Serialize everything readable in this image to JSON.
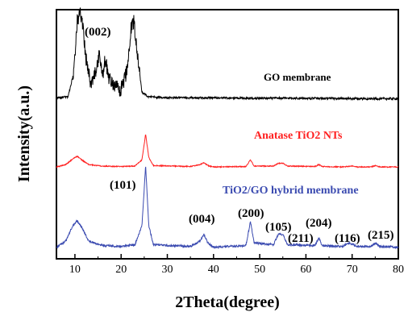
{
  "chart_data": {
    "type": "line",
    "xlabel": "2Theta(degree)",
    "ylabel": "Intensity(a.u.)",
    "xlim": [
      6,
      80
    ],
    "xticks": [
      10,
      20,
      30,
      40,
      50,
      60,
      70,
      80
    ],
    "yticks": [],
    "grid": false,
    "series": [
      {
        "name": "GO membrane",
        "color": "#000000",
        "baseline": 0.06,
        "noise": 0.012,
        "points": [
          [
            6,
            0.06
          ],
          [
            8.5,
            0.07
          ],
          [
            9.8,
            0.35
          ],
          [
            10.5,
            0.9
          ],
          [
            11.0,
            1.0
          ],
          [
            11.5,
            0.95
          ],
          [
            12.5,
            0.45
          ],
          [
            13.5,
            0.2
          ],
          [
            14.5,
            0.35
          ],
          [
            15.3,
            0.55
          ],
          [
            16.0,
            0.3
          ],
          [
            16.6,
            0.5
          ],
          [
            17.3,
            0.28
          ],
          [
            18.5,
            0.18
          ],
          [
            20.0,
            0.15
          ],
          [
            21.2,
            0.35
          ],
          [
            22.2,
            0.85
          ],
          [
            22.8,
            0.9
          ],
          [
            23.5,
            0.55
          ],
          [
            24.5,
            0.12
          ],
          [
            26,
            0.07
          ],
          [
            30,
            0.06
          ],
          [
            40,
            0.06
          ],
          [
            50,
            0.055
          ],
          [
            60,
            0.055
          ],
          [
            70,
            0.05
          ],
          [
            80,
            0.05
          ]
        ]
      },
      {
        "name": "Anatase TiO2 NTs",
        "color": "#ff2020",
        "baseline": 0.05,
        "noise": 0.01,
        "points": [
          [
            6,
            0.05
          ],
          [
            8,
            0.1
          ],
          [
            9.5,
            0.22
          ],
          [
            10.5,
            0.28
          ],
          [
            11.5,
            0.2
          ],
          [
            13,
            0.1
          ],
          [
            16,
            0.07
          ],
          [
            20,
            0.06
          ],
          [
            23,
            0.07
          ],
          [
            24.5,
            0.2
          ],
          [
            25.3,
            0.75
          ],
          [
            26,
            0.25
          ],
          [
            27,
            0.08
          ],
          [
            35,
            0.06
          ],
          [
            37,
            0.1
          ],
          [
            37.9,
            0.14
          ],
          [
            38.8,
            0.08
          ],
          [
            40,
            0.05
          ],
          [
            47,
            0.06
          ],
          [
            48,
            0.2
          ],
          [
            48.8,
            0.07
          ],
          [
            53,
            0.07
          ],
          [
            54,
            0.13
          ],
          [
            55,
            0.13
          ],
          [
            56,
            0.07
          ],
          [
            62,
            0.06
          ],
          [
            62.8,
            0.1
          ],
          [
            63.5,
            0.06
          ],
          [
            68,
            0.05
          ],
          [
            70,
            0.07
          ],
          [
            71,
            0.05
          ],
          [
            74,
            0.05
          ],
          [
            75,
            0.08
          ],
          [
            76,
            0.05
          ],
          [
            80,
            0.05
          ]
        ]
      },
      {
        "name": "TiO2/GO hybrid membrane",
        "color": "#3a4ab0",
        "baseline": 0.05,
        "noise": 0.012,
        "points": [
          [
            6,
            0.05
          ],
          [
            8,
            0.12
          ],
          [
            9.5,
            0.3
          ],
          [
            10.5,
            0.36
          ],
          [
            11.5,
            0.28
          ],
          [
            13,
            0.12
          ],
          [
            16,
            0.07
          ],
          [
            20,
            0.06
          ],
          [
            23,
            0.08
          ],
          [
            24.5,
            0.3
          ],
          [
            25.3,
            1.0
          ],
          [
            26,
            0.3
          ],
          [
            27,
            0.08
          ],
          [
            35,
            0.06
          ],
          [
            37,
            0.12
          ],
          [
            37.9,
            0.2
          ],
          [
            38.8,
            0.1
          ],
          [
            40,
            0.05
          ],
          [
            47,
            0.07
          ],
          [
            48,
            0.35
          ],
          [
            48.8,
            0.1
          ],
          [
            53,
            0.08
          ],
          [
            54,
            0.2
          ],
          [
            55,
            0.2
          ],
          [
            56,
            0.08
          ],
          [
            62,
            0.07
          ],
          [
            62.8,
            0.16
          ],
          [
            63.5,
            0.07
          ],
          [
            68,
            0.06
          ],
          [
            69,
            0.1
          ],
          [
            70,
            0.09
          ],
          [
            71,
            0.06
          ],
          [
            74,
            0.06
          ],
          [
            75,
            0.1
          ],
          [
            76,
            0.06
          ],
          [
            80,
            0.05
          ]
        ]
      }
    ],
    "annotations": {
      "go_peak": "(002)",
      "hybrid_peaks": [
        "(101)",
        "(004)",
        "(200)",
        "(105)",
        "(211)",
        "(204)",
        "(116)",
        "(215)"
      ]
    }
  }
}
